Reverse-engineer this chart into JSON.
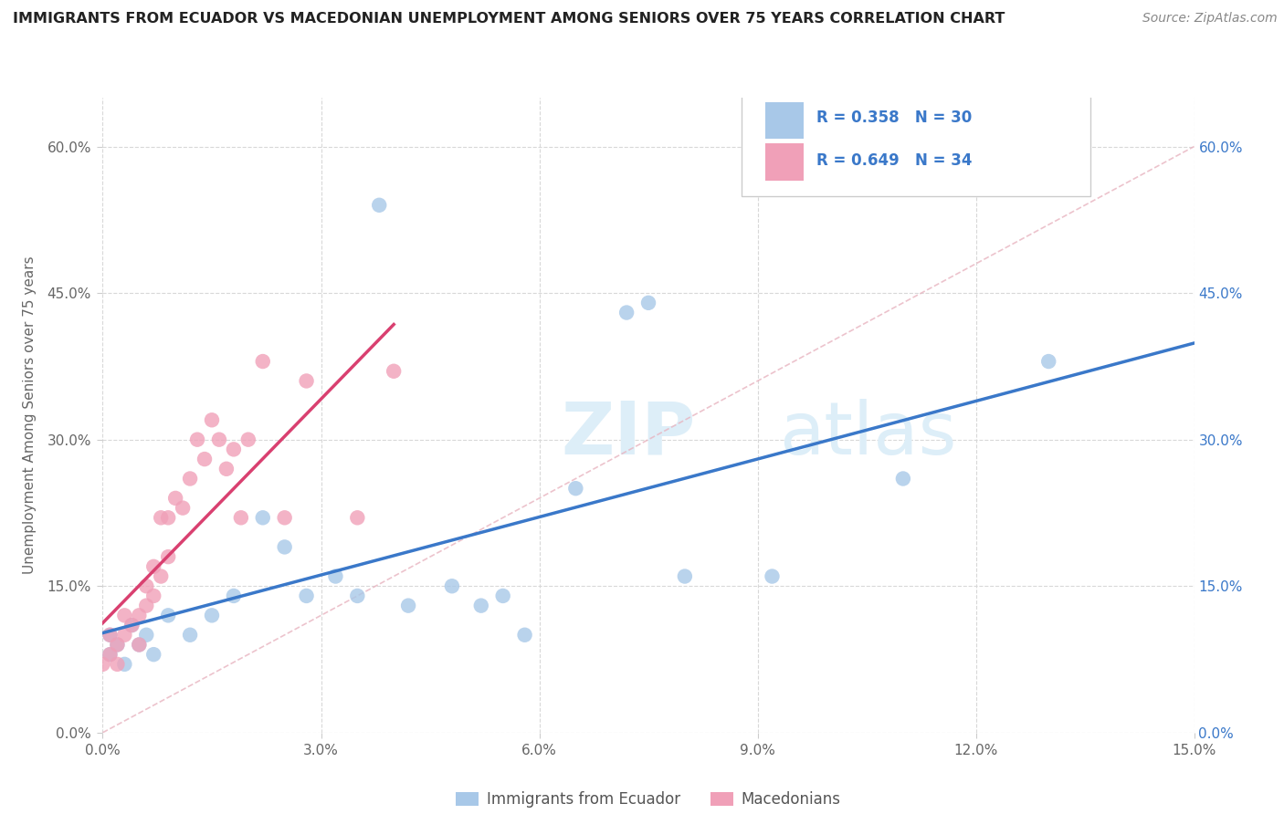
{
  "title": "IMMIGRANTS FROM ECUADOR VS MACEDONIAN UNEMPLOYMENT AMONG SENIORS OVER 75 YEARS CORRELATION CHART",
  "source": "Source: ZipAtlas.com",
  "ylabel": "Unemployment Among Seniors over 75 years",
  "xlim": [
    0.0,
    0.15
  ],
  "ylim": [
    0.0,
    0.65
  ],
  "xticks": [
    0.0,
    0.03,
    0.06,
    0.09,
    0.12,
    0.15
  ],
  "xticklabels": [
    "0.0%",
    "3.0%",
    "6.0%",
    "9.0%",
    "12.0%",
    "15.0%"
  ],
  "yticks": [
    0.0,
    0.15,
    0.3,
    0.45,
    0.6
  ],
  "yticklabels": [
    "0.0%",
    "15.0%",
    "30.0%",
    "45.0%",
    "60.0%"
  ],
  "legend_r1": "0.358",
  "legend_n1": "30",
  "legend_r2": "0.649",
  "legend_n2": "34",
  "legend_label1": "Immigrants from Ecuador",
  "legend_label2": "Macedonians",
  "blue_color": "#a8c8e8",
  "pink_color": "#f0a0b8",
  "blue_line_color": "#3a78c9",
  "pink_line_color": "#d94070",
  "diagonal_color": "#e8b4c0",
  "watermark_color": "#ddeef8",
  "ecuador_x": [
    0.001,
    0.001,
    0.002,
    0.003,
    0.004,
    0.005,
    0.006,
    0.007,
    0.009,
    0.012,
    0.015,
    0.018,
    0.022,
    0.025,
    0.028,
    0.032,
    0.035,
    0.038,
    0.042,
    0.048,
    0.052,
    0.055,
    0.058,
    0.065,
    0.072,
    0.075,
    0.08,
    0.092,
    0.11,
    0.13
  ],
  "ecuador_y": [
    0.08,
    0.1,
    0.09,
    0.07,
    0.11,
    0.09,
    0.1,
    0.08,
    0.12,
    0.1,
    0.12,
    0.14,
    0.22,
    0.19,
    0.14,
    0.16,
    0.14,
    0.54,
    0.13,
    0.15,
    0.13,
    0.14,
    0.1,
    0.25,
    0.43,
    0.44,
    0.16,
    0.16,
    0.26,
    0.38
  ],
  "macedonian_x": [
    0.0,
    0.001,
    0.001,
    0.002,
    0.002,
    0.003,
    0.003,
    0.004,
    0.005,
    0.005,
    0.006,
    0.006,
    0.007,
    0.007,
    0.008,
    0.008,
    0.009,
    0.009,
    0.01,
    0.011,
    0.012,
    0.013,
    0.014,
    0.015,
    0.016,
    0.017,
    0.018,
    0.019,
    0.02,
    0.022,
    0.025,
    0.028,
    0.035,
    0.04
  ],
  "macedonian_y": [
    0.07,
    0.08,
    0.1,
    0.07,
    0.09,
    0.1,
    0.12,
    0.11,
    0.09,
    0.12,
    0.13,
    0.15,
    0.14,
    0.17,
    0.16,
    0.22,
    0.18,
    0.22,
    0.24,
    0.23,
    0.26,
    0.3,
    0.28,
    0.32,
    0.3,
    0.27,
    0.29,
    0.22,
    0.3,
    0.38,
    0.22,
    0.36,
    0.22,
    0.37
  ]
}
